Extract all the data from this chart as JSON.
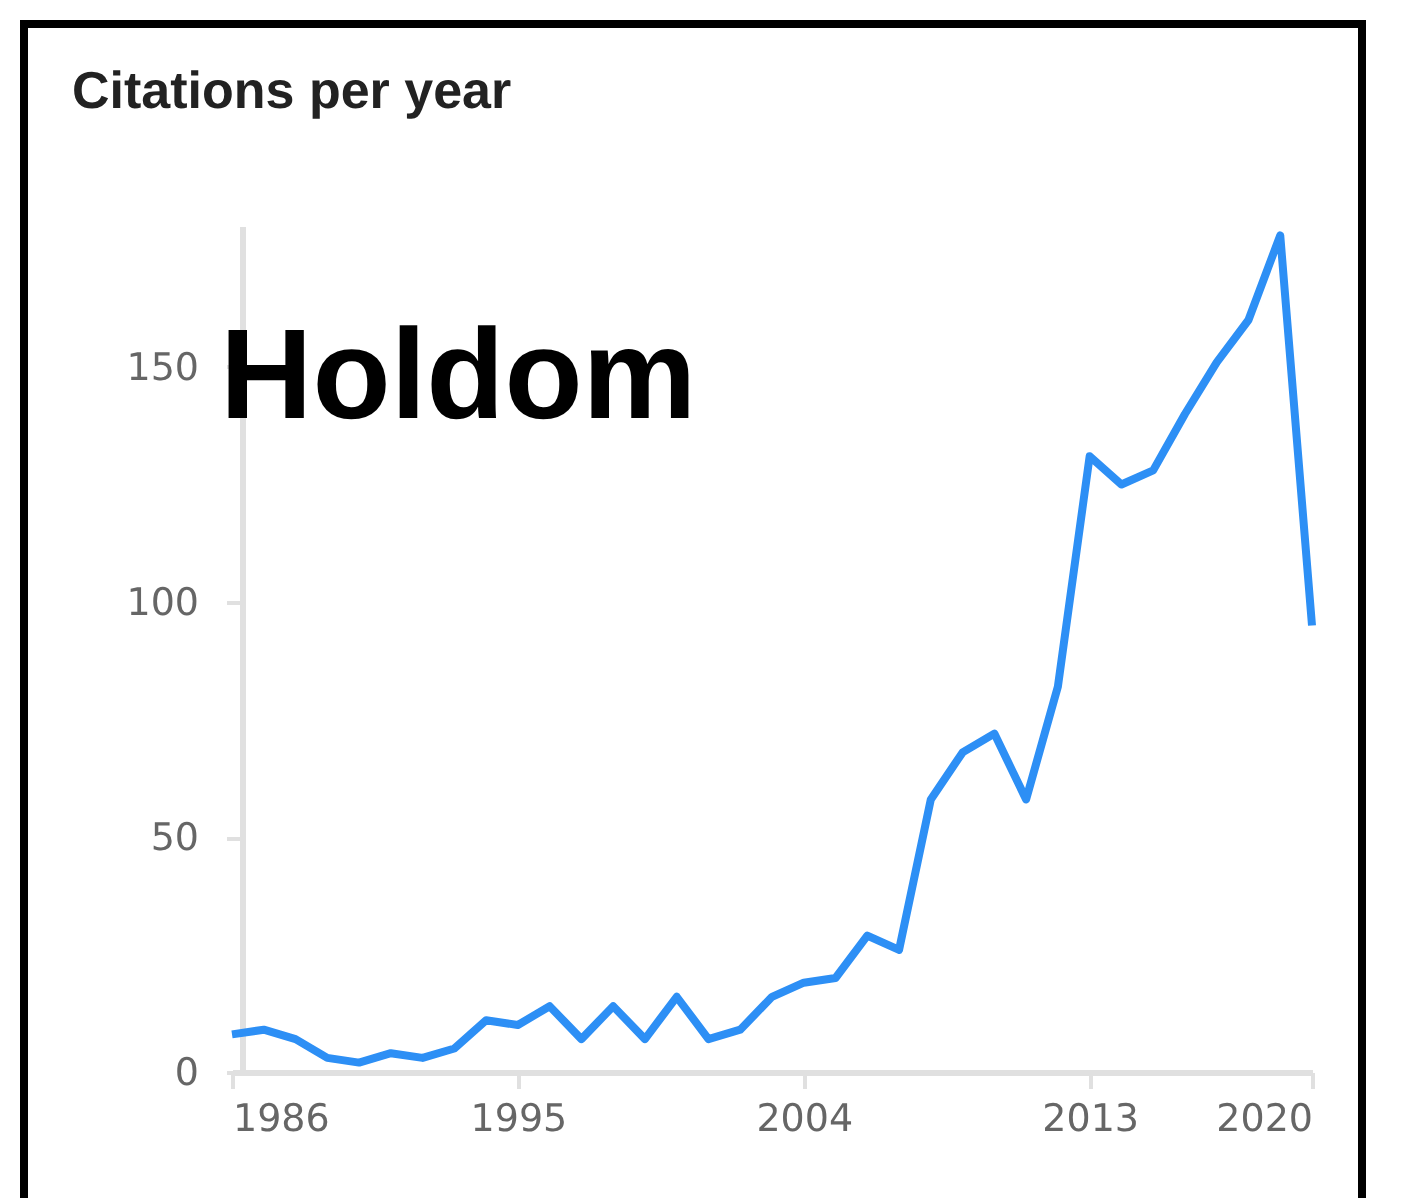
{
  "chart_data": {
    "type": "line",
    "title": "Citations per year",
    "x": [
      1986,
      1987,
      1988,
      1989,
      1990,
      1991,
      1992,
      1993,
      1994,
      1995,
      1996,
      1997,
      1998,
      1999,
      2000,
      2001,
      2002,
      2003,
      2004,
      2005,
      2006,
      2007,
      2008,
      2009,
      2010,
      2011,
      2012,
      2013,
      2014,
      2015,
      2016,
      2017,
      2018,
      2019,
      2020
    ],
    "series": [
      {
        "color": "#2d8ff5",
        "values": [
          8,
          9,
          7,
          3,
          2,
          4,
          3,
          5,
          11,
          10,
          14,
          7,
          14,
          7,
          16,
          7,
          9,
          16,
          19,
          20,
          29,
          26,
          58,
          68,
          72,
          58,
          82,
          131,
          125,
          128,
          140,
          151,
          160,
          178,
          95
        ]
      }
    ],
    "xlim": [
      1986,
      2020
    ],
    "xticks": [
      1986,
      1995,
      2004,
      2013,
      2020
    ],
    "ylim": [
      0,
      180
    ],
    "yticks": [
      0,
      50,
      100,
      150
    ],
    "grid": false,
    "marker": "none",
    "line_style": "solid",
    "annotations": [
      "Holdom"
    ]
  }
}
